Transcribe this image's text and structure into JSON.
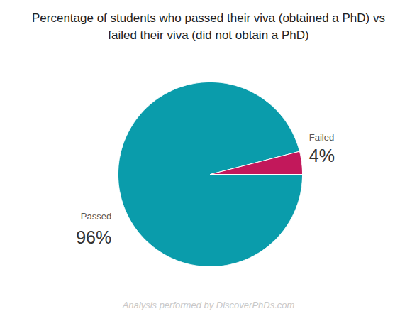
{
  "chart_data": {
    "type": "pie",
    "title": "Percentage of students who passed their viva (obtained a PhD) vs failed their viva (did not obtain a PhD)",
    "categories": [
      "Passed",
      "Failed"
    ],
    "values": [
      96,
      4
    ],
    "value_labels": [
      "96%",
      "4%"
    ],
    "colors": [
      "#0a9cab",
      "#c2185b"
    ],
    "data_labels": true,
    "caption": "Analysis performed by DiscoverPhDs.com"
  }
}
